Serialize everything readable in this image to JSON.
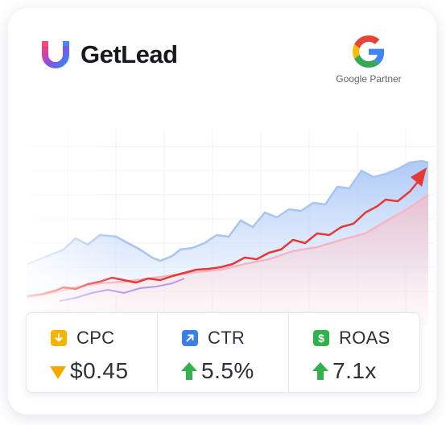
{
  "brand": {
    "name": "GetLead",
    "logo_icon": "u-magnet-logo-icon"
  },
  "partner": {
    "label": "Google Partner",
    "logo_icon": "google-g-icon"
  },
  "colors": {
    "cpc_badge": "#f5b400",
    "cpc_trend": "#f5a800",
    "ctr_badge": "#3b7fe6",
    "roas_badge": "#2fb14e",
    "trend_up": "#35b04e",
    "chart_red": "#e53935",
    "chart_blue": "#aac8f5"
  },
  "stats": [
    {
      "label": "CPC",
      "value": "$0.45",
      "badge_icon": "arrow-down-icon",
      "trend": "down"
    },
    {
      "label": "CTR",
      "value": "5.5%",
      "badge_icon": "arrow-up-right-icon",
      "trend": "up"
    },
    {
      "label": "ROAS",
      "value": "7.1x",
      "badge_icon": "dollar-icon",
      "badge_text": "$",
      "trend": "up"
    }
  ]
}
